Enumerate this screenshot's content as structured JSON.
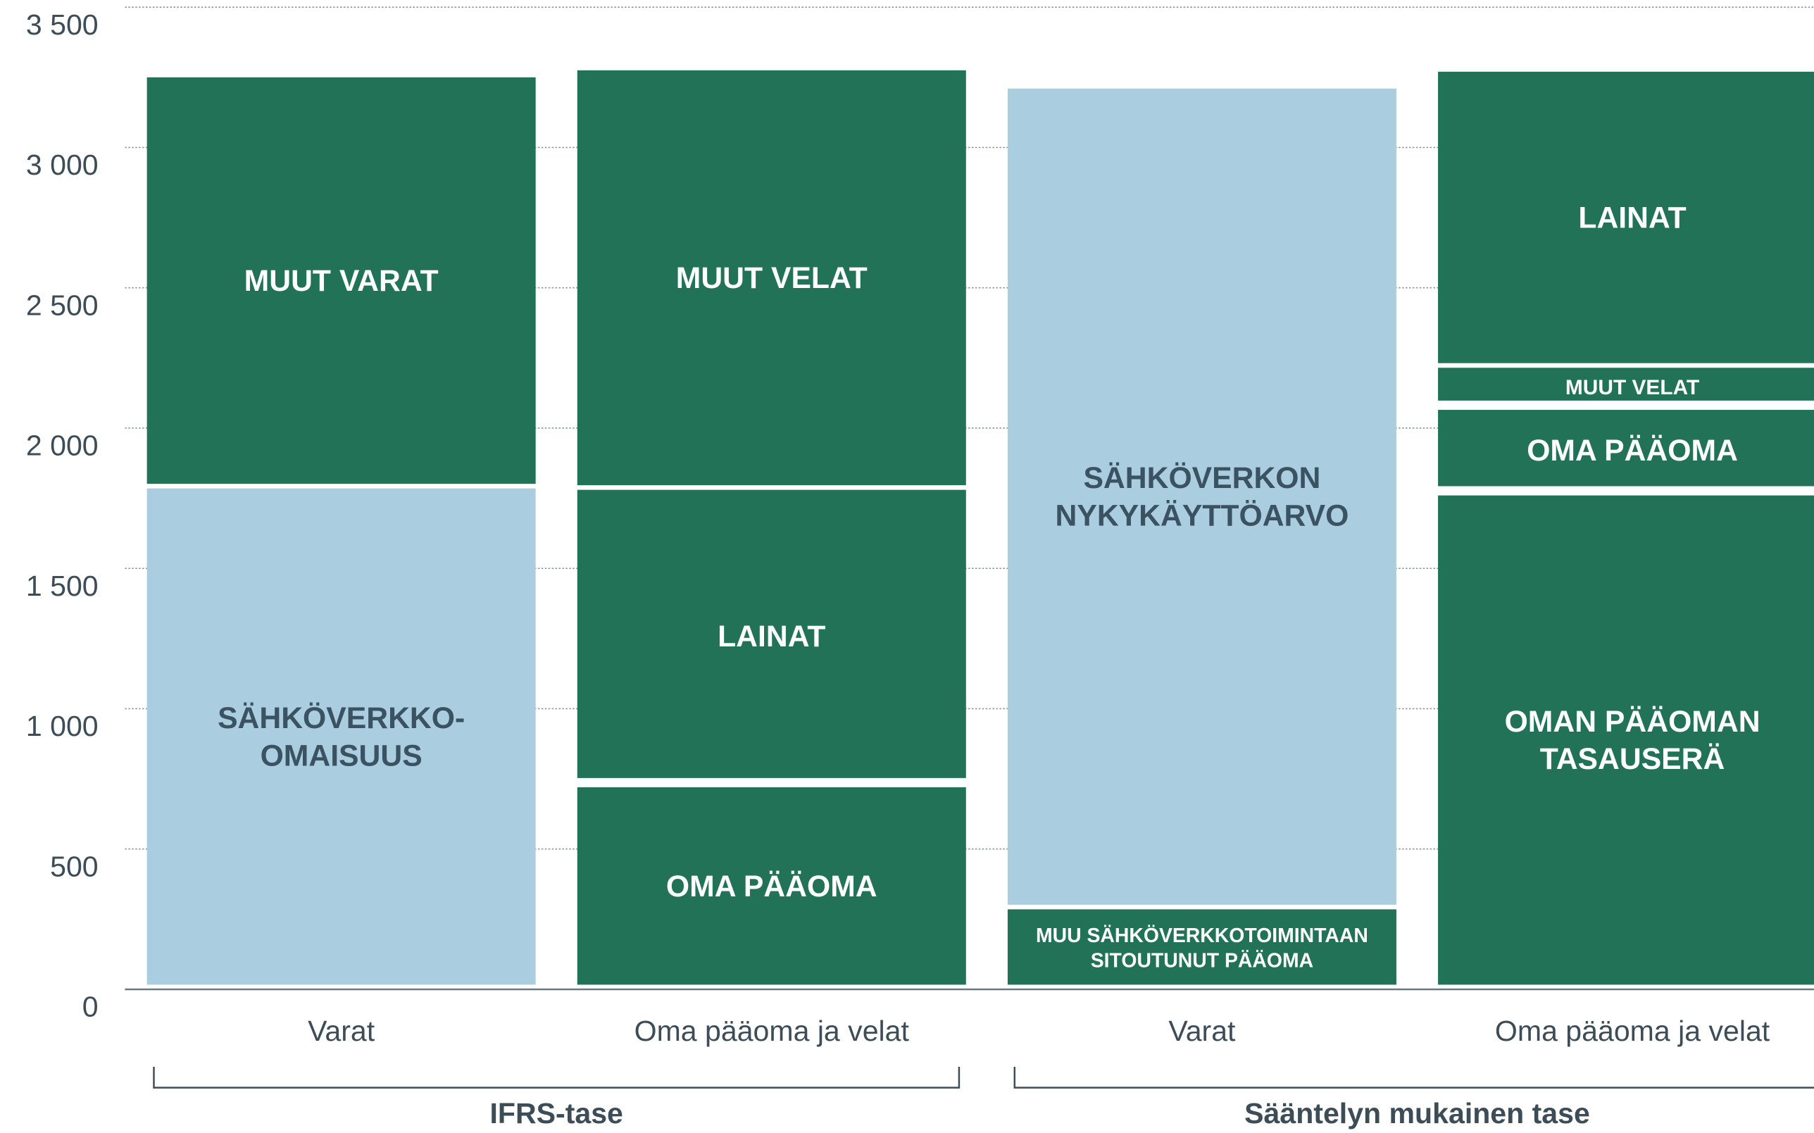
{
  "chart_data": {
    "type": "stacked_bar",
    "ylim": [
      0,
      3500
    ],
    "yticks": [
      0,
      500,
      {
        "value": 1000,
        "label": "1 000"
      },
      {
        "value": 1500,
        "label": "1 500"
      },
      {
        "value": 2000,
        "label": "2 000"
      },
      {
        "value": 2500,
        "label": "2 500"
      },
      {
        "value": 3000,
        "label": "3 000"
      },
      {
        "value": 3500,
        "label": "3 500"
      }
    ],
    "grid": true,
    "groups": [
      {
        "label": "IFRS-tase",
        "bars": [
          0,
          1
        ]
      },
      {
        "label": "Sääntelyn mukainen tase",
        "bars": [
          2,
          3
        ]
      }
    ],
    "bars": [
      {
        "category": "Varat",
        "segments": [
          {
            "name": [
              "SÄHKÖVERKKO-",
              "OMAISUUS"
            ],
            "color": "#abcde0",
            "text_color": "#3a5262",
            "value": 1785
          },
          {
            "name": [
              "MUUT VARAT"
            ],
            "color": "#217256",
            "text_color": "#ffffff",
            "value": 1465
          }
        ]
      },
      {
        "category": "Oma pääoma ja velat",
        "segments": [
          {
            "name": [
              "OMA PÄÄOMA"
            ],
            "color": "#217256",
            "text_color": "#ffffff",
            "value": 720
          },
          {
            "name": [
              "LAINAT"
            ],
            "color": "#217256",
            "text_color": "#ffffff",
            "value": 1060
          },
          {
            "name": [
              "MUUT VELAT"
            ],
            "color": "#217256",
            "text_color": "#ffffff",
            "value": 1495
          }
        ]
      },
      {
        "category": "Varat",
        "segments": [
          {
            "name": [
              "MUU SÄHKÖVERKKOTOIMINTAAN",
              "SITOUTUNUT PÄÄOMA"
            ],
            "color": "#217256",
            "text_color": "#ffffff",
            "value": 285
          },
          {
            "name": [
              "SÄHKÖVERKON",
              "NYKYKÄYTTÖARVO"
            ],
            "color": "#abcde0",
            "text_color": "#3a5262",
            "value": 2925
          }
        ]
      },
      {
        "category": "Oma pääoma ja velat",
        "segments": [
          {
            "name": [
              "OMAN PÄÄOMAN",
              "TASAUSERÄ"
            ],
            "color": "#217256",
            "text_color": "#ffffff",
            "value": 1760
          },
          {
            "name": [
              "OMA PÄÄOMA"
            ],
            "color": "#217256",
            "text_color": "#ffffff",
            "value": 305
          },
          {
            "name": [
              "MUUT VELAT"
            ],
            "color": "#217256",
            "text_color": "#ffffff",
            "value": 150
          },
          {
            "name": [
              "LAINAT"
            ],
            "color": "#217256",
            "text_color": "#ffffff",
            "value": 1055
          }
        ]
      }
    ]
  }
}
